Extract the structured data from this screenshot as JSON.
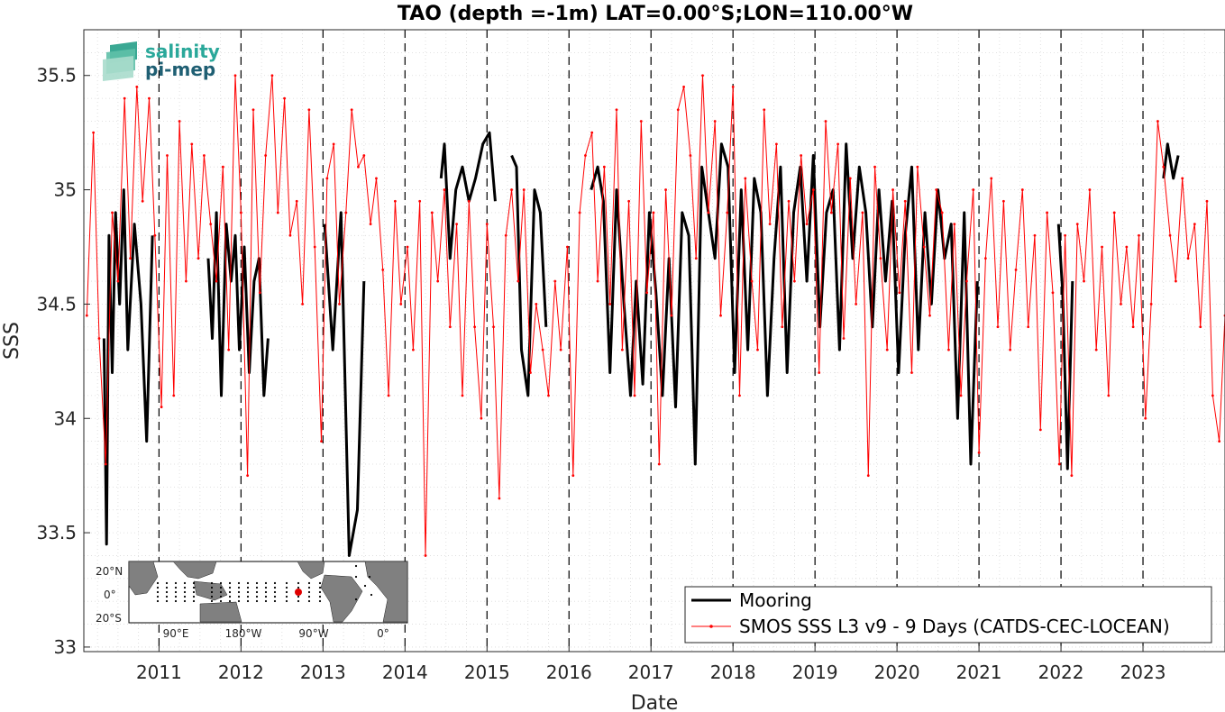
{
  "chart_data": {
    "type": "line",
    "title": "TAO (depth =-1m) LAT=0.00°S;LON=110.00°W",
    "xlabel": "Date",
    "ylabel": "SSS",
    "x_range": [
      "2010-01-15",
      "2023-12-31"
    ],
    "ylim": [
      32.98,
      35.7
    ],
    "y_ticks": [
      33,
      33.5,
      34,
      34.5,
      35,
      35.5
    ],
    "y_tick_labels": [
      "33",
      "33.5",
      "34",
      "34.5",
      "35",
      "35.5"
    ],
    "x_ticks": [
      "2011",
      "2012",
      "2013",
      "2014",
      "2015",
      "2016",
      "2017",
      "2018",
      "2019",
      "2020",
      "2021",
      "2022",
      "2023"
    ],
    "grid": "on (dotted, minor)",
    "year_boundary_lines": "dashed",
    "legend_position": "bottom-right",
    "series": [
      {
        "name": "Mooring",
        "color": "#000000",
        "style": "thick line",
        "x": [
          2010.33,
          2010.36,
          2010.39,
          2010.43,
          2010.47,
          2010.52,
          2010.57,
          2010.62,
          2010.7,
          2010.78,
          2010.85,
          2010.92,
          null,
          2011.6,
          2011.65,
          2011.7,
          2011.76,
          2011.82,
          2011.88,
          2011.93,
          2011.98,
          2012.04,
          2012.1,
          2012.16,
          2012.22,
          2012.28,
          2012.33,
          null,
          2013.02,
          2013.12,
          2013.22,
          2013.32,
          2013.42,
          2013.5,
          null,
          2014.44,
          2014.48,
          2014.55,
          2014.62,
          2014.7,
          2014.78,
          2014.86,
          2014.95,
          2015.03,
          2015.1,
          null,
          2015.3,
          2015.36,
          2015.42,
          2015.5,
          2015.58,
          2015.65,
          2015.72,
          null,
          2016.27,
          2016.35,
          2016.42,
          2016.5,
          2016.58,
          2016.67,
          2016.75,
          2016.82,
          2016.9,
          2016.98,
          2017.06,
          2017.14,
          2017.22,
          2017.3,
          2017.38,
          2017.46,
          2017.54,
          2017.62,
          2017.7,
          2017.78,
          2017.86,
          2017.94,
          2018.02,
          2018.1,
          2018.18,
          2018.26,
          2018.34,
          2018.42,
          2018.5,
          2018.58,
          2018.66,
          2018.74,
          2018.82,
          2018.9,
          2018.98,
          2019.06,
          2019.14,
          2019.22,
          2019.3,
          2019.38,
          2019.46,
          2019.54,
          2019.62,
          2019.7,
          2019.78,
          2019.86,
          2019.94,
          2020.02,
          2020.1,
          2020.18,
          2020.26,
          2020.34,
          2020.42,
          2020.5,
          2020.58,
          2020.66,
          2020.74,
          2020.82,
          2020.9,
          2020.98,
          null,
          2021.97,
          2022.02,
          2022.08,
          2022.14,
          null,
          2023.25,
          2023.3,
          2023.37,
          2023.43
        ],
        "y": [
          34.35,
          33.45,
          34.8,
          34.2,
          34.9,
          34.5,
          35.0,
          34.3,
          34.85,
          34.5,
          33.9,
          34.8,
          null,
          34.7,
          34.35,
          34.9,
          34.1,
          34.85,
          34.6,
          34.8,
          34.3,
          34.75,
          34.2,
          34.6,
          34.7,
          34.1,
          34.35,
          null,
          34.85,
          34.3,
          34.9,
          33.4,
          33.6,
          34.6,
          null,
          35.05,
          35.2,
          34.7,
          35.0,
          35.1,
          34.95,
          35.05,
          35.2,
          35.25,
          34.95,
          null,
          35.15,
          35.1,
          34.3,
          34.1,
          35.0,
          34.9,
          34.4,
          null,
          35.0,
          35.1,
          34.95,
          34.2,
          35.0,
          34.5,
          34.1,
          34.6,
          34.15,
          34.9,
          34.55,
          34.1,
          34.7,
          34.05,
          34.9,
          34.8,
          33.8,
          35.1,
          34.9,
          34.7,
          35.2,
          35.1,
          34.2,
          35.0,
          34.3,
          35.05,
          34.9,
          34.1,
          34.7,
          35.1,
          34.2,
          34.9,
          35.1,
          34.6,
          35.15,
          34.4,
          34.9,
          35.0,
          34.3,
          35.2,
          34.7,
          35.1,
          34.9,
          34.4,
          35.0,
          34.6,
          34.95,
          34.2,
          34.8,
          35.1,
          34.3,
          34.9,
          34.5,
          35.0,
          34.7,
          34.85,
          34.0,
          34.9,
          33.8,
          34.6,
          null,
          34.85,
          34.55,
          33.78,
          34.6,
          null,
          35.05,
          35.2,
          35.05,
          35.15
        ]
      },
      {
        "name": "SMOS SSS L3 v9 - 9 Days (CATDS-CEC-LOCEAN)",
        "color": "#ff0000",
        "style": "thin line with dot markers",
        "x": [
          2010.12,
          2010.2,
          2010.27,
          2010.35,
          2010.43,
          2010.5,
          2010.58,
          2010.65,
          2010.73,
          2010.8,
          2010.88,
          2010.95,
          2011.03,
          2011.1,
          2011.18,
          2011.25,
          2011.33,
          2011.4,
          2011.48,
          2011.55,
          2011.63,
          2011.7,
          2011.78,
          2011.85,
          2011.93,
          2012.0,
          2012.08,
          2012.15,
          2012.23,
          2012.3,
          2012.38,
          2012.45,
          2012.53,
          2012.6,
          2012.68,
          2012.75,
          2012.83,
          2012.9,
          2012.98,
          2013.05,
          2013.13,
          2013.2,
          2013.28,
          2013.35,
          2013.43,
          2013.5,
          2013.58,
          2013.65,
          2013.73,
          2013.8,
          2013.88,
          2013.95,
          2014.03,
          2014.1,
          2014.18,
          2014.25,
          2014.33,
          2014.4,
          2014.48,
          2014.55,
          2014.63,
          2014.7,
          2014.78,
          2014.85,
          2014.93,
          2015.0,
          2015.08,
          2015.15,
          2015.23,
          2015.3,
          2015.38,
          2015.45,
          2015.53,
          2015.6,
          2015.68,
          2015.75,
          2015.83,
          2015.9,
          2015.98,
          2016.05,
          2016.13,
          2016.2,
          2016.28,
          2016.35,
          2016.43,
          2016.5,
          2016.58,
          2016.65,
          2016.73,
          2016.8,
          2016.88,
          2016.95,
          2017.03,
          2017.1,
          2017.18,
          2017.25,
          2017.33,
          2017.4,
          2017.48,
          2017.55,
          2017.63,
          2017.7,
          2017.78,
          2017.85,
          2017.93,
          2018.0,
          2018.08,
          2018.15,
          2018.23,
          2018.3,
          2018.38,
          2018.45,
          2018.53,
          2018.6,
          2018.68,
          2018.75,
          2018.83,
          2018.9,
          2018.98,
          2019.05,
          2019.13,
          2019.2,
          2019.28,
          2019.35,
          2019.43,
          2019.5,
          2019.58,
          2019.65,
          2019.73,
          2019.8,
          2019.88,
          2019.95,
          2020.03,
          2020.1,
          2020.18,
          2020.25,
          2020.33,
          2020.4,
          2020.48,
          2020.55,
          2020.63,
          2020.7,
          2020.78,
          2020.85,
          2020.93,
          2021.0,
          2021.08,
          2021.15,
          2021.23,
          2021.3,
          2021.38,
          2021.45,
          2021.53,
          2021.6,
          2021.68,
          2021.75,
          2021.83,
          2021.9,
          2021.98,
          2022.05,
          2022.13,
          2022.2,
          2022.28,
          2022.35,
          2022.43,
          2022.5,
          2022.58,
          2022.65,
          2022.73,
          2022.8,
          2022.88,
          2022.95,
          2023.03,
          2023.1,
          2023.18,
          2023.25,
          2023.33,
          2023.4,
          2023.48,
          2023.55,
          2023.63,
          2023.7,
          2023.78,
          2023.85,
          2023.93,
          2024.0
        ],
        "y": [
          34.45,
          35.25,
          34.35,
          33.8,
          34.9,
          34.6,
          35.4,
          34.7,
          35.45,
          34.95,
          35.4,
          34.8,
          34.05,
          35.15,
          34.1,
          35.3,
          34.6,
          35.2,
          34.7,
          35.15,
          34.85,
          34.6,
          35.1,
          34.3,
          35.5,
          34.9,
          33.75,
          35.35,
          34.55,
          35.15,
          35.5,
          34.9,
          35.4,
          34.8,
          34.95,
          34.5,
          35.35,
          34.75,
          33.9,
          35.05,
          35.2,
          34.5,
          34.9,
          35.35,
          35.1,
          35.15,
          34.85,
          35.05,
          34.65,
          34.1,
          34.95,
          34.5,
          34.75,
          34.3,
          34.95,
          33.4,
          34.9,
          34.6,
          35.0,
          34.4,
          34.85,
          34.1,
          34.95,
          34.4,
          34.0,
          34.85,
          34.4,
          33.65,
          34.8,
          35.0,
          34.6,
          35.0,
          34.2,
          34.5,
          34.3,
          34.1,
          34.6,
          34.3,
          34.75,
          33.75,
          34.9,
          35.15,
          35.25,
          34.6,
          35.1,
          34.5,
          35.35,
          34.3,
          34.95,
          34.1,
          35.3,
          34.55,
          34.9,
          33.8,
          35.0,
          34.45,
          35.35,
          35.45,
          35.15,
          34.7,
          35.5,
          34.9,
          35.3,
          34.45,
          34.9,
          35.45,
          34.1,
          35.05,
          34.6,
          34.3,
          35.35,
          34.85,
          35.2,
          34.4,
          34.95,
          34.6,
          35.15,
          34.85,
          35.0,
          34.2,
          35.3,
          34.9,
          35.2,
          34.35,
          35.05,
          34.5,
          34.9,
          33.75,
          35.1,
          34.7,
          34.3,
          35.0,
          34.55,
          34.95,
          34.2,
          35.1,
          34.75,
          34.45,
          35.0,
          34.9,
          34.3,
          34.85,
          34.1,
          34.6,
          35.0,
          33.85,
          34.7,
          35.05,
          34.4,
          34.95,
          34.3,
          34.65,
          35.0,
          34.4,
          34.8,
          33.95,
          34.9,
          34.55,
          33.8,
          34.8,
          33.75,
          34.85,
          34.6,
          35.0,
          34.3,
          34.75,
          34.1,
          34.9,
          34.5,
          34.75,
          34.4,
          34.8,
          34.0,
          34.5,
          35.3,
          35.1,
          34.8,
          34.6,
          35.05,
          34.7,
          34.85,
          34.4,
          34.95,
          34.1,
          33.9,
          34.45
        ]
      }
    ],
    "logo": {
      "word1": "salinity",
      "word2": "pi-mep"
    },
    "inset_map": {
      "lat_labels": [
        "20°N",
        "0°",
        "20°S"
      ],
      "lon_labels": [
        "90°E",
        "180°W",
        "90°W",
        "0°"
      ],
      "marker_color": "#e00000",
      "land_color": "#7f7f7f"
    }
  }
}
